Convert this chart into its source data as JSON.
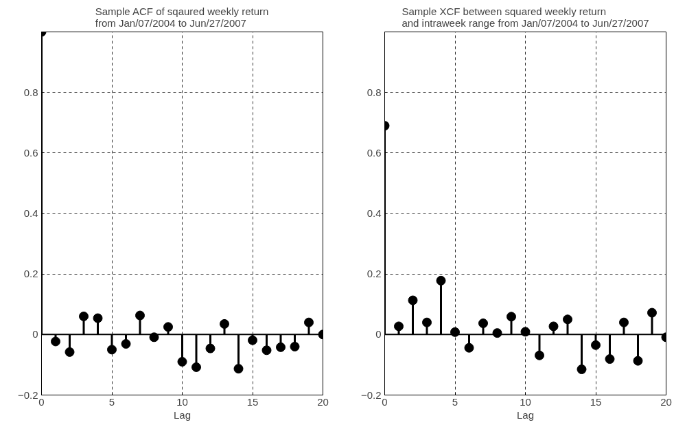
{
  "chart_data": [
    {
      "type": "lollipop",
      "title": "Sample ACF of sqaured weekly return\nfrom Jan/07/2004 to Jun/27/2007",
      "xlabel": "Lag",
      "x": [
        0,
        1,
        2,
        3,
        4,
        5,
        6,
        7,
        8,
        9,
        10,
        11,
        12,
        13,
        14,
        15,
        16,
        17,
        18,
        19,
        20
      ],
      "values": [
        1,
        -0.023,
        -0.058,
        0.06,
        0.054,
        -0.05,
        -0.031,
        0.063,
        -0.009,
        0.025,
        -0.09,
        -0.108,
        -0.046,
        0.035,
        -0.113,
        -0.019,
        -0.052,
        -0.042,
        -0.04,
        0.04,
        0
      ],
      "color": "#000000",
      "marker": "circle",
      "xlim": [
        0,
        20
      ],
      "xticks": [
        0,
        5,
        10,
        15,
        20
      ],
      "ylim": [
        -0.2,
        1
      ],
      "yticks": [
        -0.2,
        0,
        0.2,
        0.4,
        0.6,
        0.8
      ],
      "grid": true
    },
    {
      "type": "lollipop",
      "title": "Sample XCF between squared weekly return\nand intraweek range from Jan/07/2004 to Jun/27/2007",
      "xlabel": "Lag",
      "x": [
        0,
        1,
        2,
        3,
        4,
        5,
        6,
        7,
        8,
        9,
        10,
        11,
        12,
        13,
        14,
        15,
        16,
        17,
        18,
        19,
        20
      ],
      "values": [
        0.69,
        0.027,
        0.113,
        0.04,
        0.178,
        0.008,
        -0.044,
        0.037,
        0.005,
        0.059,
        0.009,
        -0.069,
        0.027,
        0.05,
        -0.115,
        -0.035,
        -0.081,
        0.04,
        -0.087,
        0.072,
        -0.009
      ],
      "color": "#000000",
      "marker": "circle",
      "xlim": [
        0,
        20
      ],
      "xticks": [
        0,
        5,
        10,
        15,
        20
      ],
      "ylim": [
        -0.2,
        1
      ],
      "yticks": [
        -0.2,
        0,
        0.2,
        0.4,
        0.6,
        0.8
      ],
      "grid": true
    }
  ]
}
